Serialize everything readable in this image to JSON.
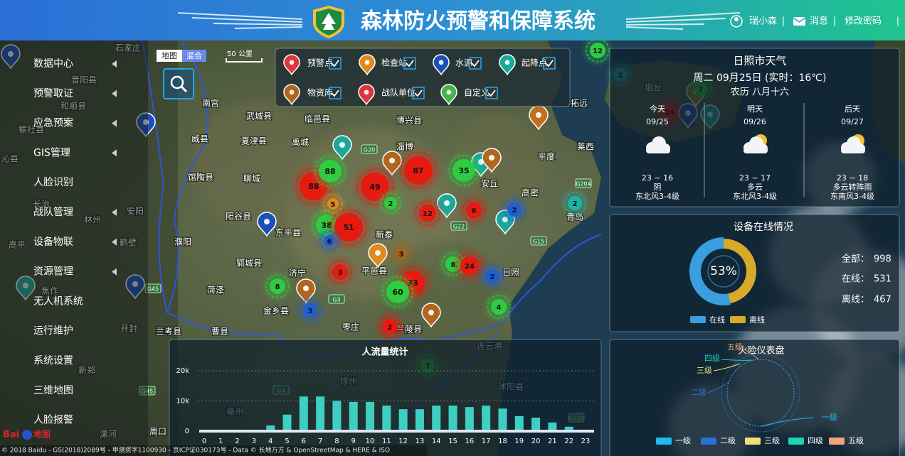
{
  "header": {
    "title": "森林防火预警和保障系统",
    "user": "瑞小森",
    "messages": "消息",
    "change_password": "修改密码",
    "separator": "|"
  },
  "sidebar": {
    "items": [
      "数据中心",
      "预警取证",
      "应急预案",
      "GIS管理",
      "人脸识别",
      "战队管理",
      "设备物联",
      "资源管理",
      "无人机系统",
      "运行维护",
      "系统设置",
      "三维地图",
      "人脸报警"
    ]
  },
  "map_controls": {
    "map_types": [
      "地图",
      "混合"
    ],
    "scale": "50 公里"
  },
  "layer_legend": {
    "items": [
      "预警点",
      "检查站",
      "水源",
      "起降点",
      "物资库",
      "战队单位",
      "自定义"
    ]
  },
  "map": {
    "places": [
      "石家庄",
      "昔阳县",
      "和顺县",
      "榆社县",
      "沁县",
      "南宫",
      "武城县",
      "临邑县",
      "博兴县",
      "威县",
      "夏津县",
      "禹城",
      "淄博",
      "平度",
      "莱西",
      "馆陶县",
      "聊城",
      "安丘",
      "高密",
      "长治",
      "林州",
      "安阳",
      "阳谷县",
      "东平县",
      "新泰",
      "青岛",
      "濮阳",
      "鹤壁",
      "高平",
      "郓城县",
      "平邑县",
      "济宁",
      "日照",
      "菏泽",
      "焦作",
      "金乡县",
      "枣庄",
      "兰陵县",
      "兰考县",
      "曹县",
      "开封",
      "连云港",
      "徐州",
      "新郑",
      "沭阳县",
      "亳州",
      "漯河",
      "周口",
      "烟台",
      "拓远"
    ],
    "roads": [
      "G20",
      "G22",
      "G3",
      "G15",
      "G204",
      "G45",
      "G45",
      "G3",
      "G328"
    ],
    "clusters": [
      {
        "value": 88,
        "color": "#e8190f"
      },
      {
        "value": 88,
        "color": "#2ecc40"
      },
      {
        "value": 49,
        "color": "#e8190f"
      },
      {
        "value": 87,
        "color": "#e8190f"
      },
      {
        "value": 35,
        "color": "#2ecc40"
      },
      {
        "value": 12,
        "color": "#e8190f"
      },
      {
        "value": 6,
        "color": "#e8190f"
      },
      {
        "value": 2,
        "color": "#1e5fd6"
      },
      {
        "value": 2,
        "color": "#1bb3a8"
      },
      {
        "value": 38,
        "color": "#2ecc40"
      },
      {
        "value": 51,
        "color": "#e8190f"
      },
      {
        "value": 5,
        "color": "#e08a1e"
      },
      {
        "value": 2,
        "color": "#2ecc40"
      },
      {
        "value": 6,
        "color": "#1e5fd6"
      },
      {
        "value": 3,
        "color": "#a0651e"
      },
      {
        "value": 8,
        "color": "#2ecc40"
      },
      {
        "value": 24,
        "color": "#e8190f"
      },
      {
        "value": 3,
        "color": "#e8190f"
      },
      {
        "value": 33,
        "color": "#e8190f"
      },
      {
        "value": 60,
        "color": "#2ecc40"
      },
      {
        "value": 2,
        "color": "#e8190f"
      },
      {
        "value": 2,
        "color": "#1e5fd6"
      },
      {
        "value": 4,
        "color": "#2ecc40"
      },
      {
        "value": 8,
        "color": "#2ecc40"
      },
      {
        "value": 3,
        "color": "#1e5fd6"
      },
      {
        "value": 7,
        "color": "#2ecc40"
      },
      {
        "value": 12,
        "color": "#2ecc40"
      },
      {
        "value": 2,
        "color": "#1bb3a8"
      },
      {
        "value": 7,
        "color": "#2ecc40"
      },
      {
        "value": 24,
        "color": "#e8190f"
      }
    ]
  },
  "weather": {
    "title": "日照市天气",
    "date": "周二 09月25日 (实时：16℃)",
    "lunar": "农历 八月十六",
    "days": [
      {
        "label": "今天",
        "date": "09/25",
        "temp": "23 ~ 16",
        "condition": "阴",
        "wind": "东北风3-4级"
      },
      {
        "label": "明天",
        "date": "09/26",
        "temp": "23 ~ 17",
        "condition": "多云",
        "wind": "东北风3-4级"
      },
      {
        "label": "后天",
        "date": "09/27",
        "temp": "23 ~ 18",
        "condition": "多云转阵雨",
        "wind": "东南风3-4级"
      }
    ]
  },
  "device_status": {
    "title": "设备在线情况",
    "online_rate": "53%",
    "legend": [
      {
        "name": "在线",
        "color": "#3a9ee0"
      },
      {
        "name": "离线",
        "color": "#d9a92a"
      }
    ],
    "stats": [
      {
        "label": "全部：",
        "value": 998
      },
      {
        "label": "在线：",
        "value": 531
      },
      {
        "label": "离线：",
        "value": 467
      }
    ]
  },
  "people_flow": {
    "type": "bar",
    "title": "人流量统计",
    "color": "#3ecfc3",
    "categories": [
      0,
      1,
      2,
      3,
      4,
      5,
      6,
      7,
      8,
      9,
      10,
      11,
      12,
      13,
      14,
      15,
      16,
      17,
      18,
      19,
      20,
      21,
      22,
      23
    ],
    "values": [
      0,
      0,
      0,
      0,
      1400,
      5000,
      11000,
      11000,
      9600,
      9200,
      9200,
      8000,
      6800,
      6800,
      8000,
      8000,
      7500,
      8000,
      7000,
      4500,
      4000,
      2400,
      1000,
      0
    ],
    "ylim": [
      0,
      20000
    ],
    "yticks": [
      0,
      {
        "value": 10000,
        "label": "10k"
      },
      {
        "value": 20000,
        "label": "20k"
      }
    ],
    "grid": true
  },
  "fire_gauge": {
    "title": "火险仪表盘",
    "levels": [
      {
        "name": "一级",
        "color": "#22b8f2"
      },
      {
        "name": "二级",
        "color": "#2a6fd6"
      },
      {
        "name": "三级",
        "color": "#f3df7a"
      },
      {
        "name": "四级",
        "color": "#1fd3b5"
      },
      {
        "name": "五级",
        "color": "#f4a27a"
      }
    ]
  },
  "footer": {
    "logo_left": "Bai",
    "logo_right": "地图",
    "copyright": "© 2018 Baidu - GS(2018)2089号 - 甲测资字1100930 - 京ICP证030173号 - Data © 长地万方 & OpenStreetMap & HERE & ISO"
  }
}
